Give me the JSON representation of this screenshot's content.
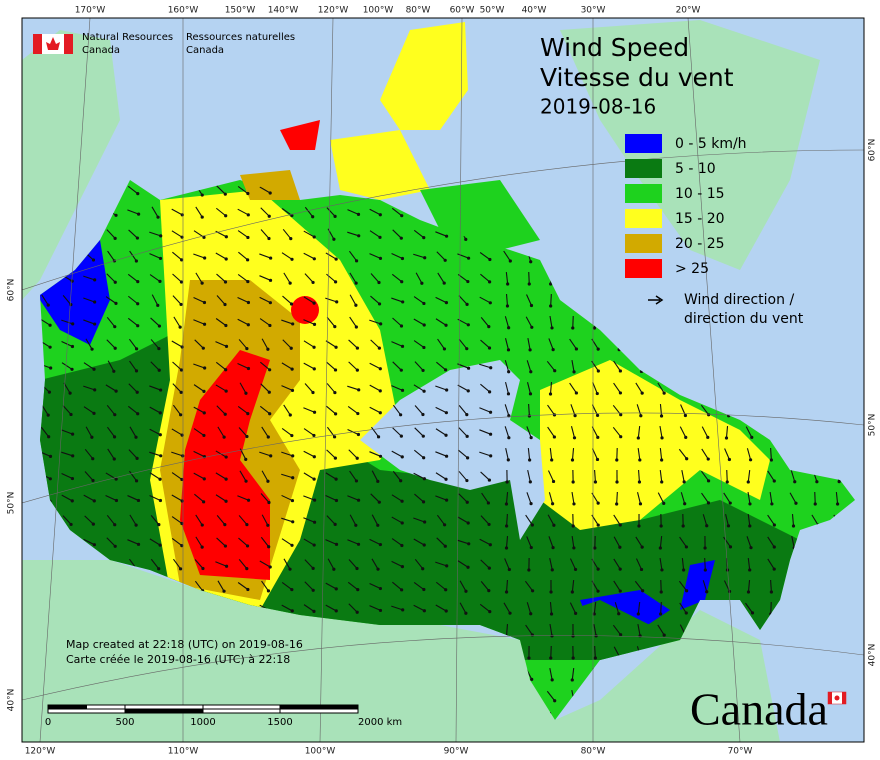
{
  "header": {
    "agency_en": [
      "Natural Resources",
      "Canada"
    ],
    "agency_fr": [
      "Ressources naturelles",
      "Canada"
    ]
  },
  "title": {
    "en": "Wind Speed",
    "fr": "Vitesse du vent",
    "date": "2019-08-16"
  },
  "legend": {
    "items": [
      {
        "label": "0 - 5 km/h",
        "color": "#0000ff"
      },
      {
        "label": "5 - 10",
        "color": "#0a7a12"
      },
      {
        "label": "10 - 15",
        "color": "#1ed21e"
      },
      {
        "label": "15 - 20",
        "color": "#ffff1e"
      },
      {
        "label": "20 - 25",
        "color": "#d2aa00"
      },
      {
        "label": "> 25",
        "color": "#ff0000"
      }
    ],
    "arrow_label": [
      "Wind direction /",
      "direction du vent"
    ]
  },
  "graticule": {
    "top": [
      "170°W",
      "160°W",
      "150°W",
      "140°W",
      "120°W",
      "100°W",
      "80°W",
      "60°W",
      "50°W",
      "40°W",
      "30°W",
      "20°W"
    ],
    "bottom": [
      "120°W",
      "110°W",
      "100°W",
      "90°W",
      "80°W",
      "70°W"
    ],
    "left": [
      "60°N",
      "50°N",
      "40°N"
    ],
    "right": [
      "60°N",
      "50°N",
      "40°N"
    ]
  },
  "credits": [
    "Map created at 22:18 (UTC) on 2019-08-16",
    "Carte créée le 2019-08-16 (UTC) à 22:18"
  ],
  "scale_bar": {
    "labels": [
      "0",
      "500",
      "1000",
      "1500",
      "2000 km"
    ]
  },
  "wordmark": "Canada"
}
